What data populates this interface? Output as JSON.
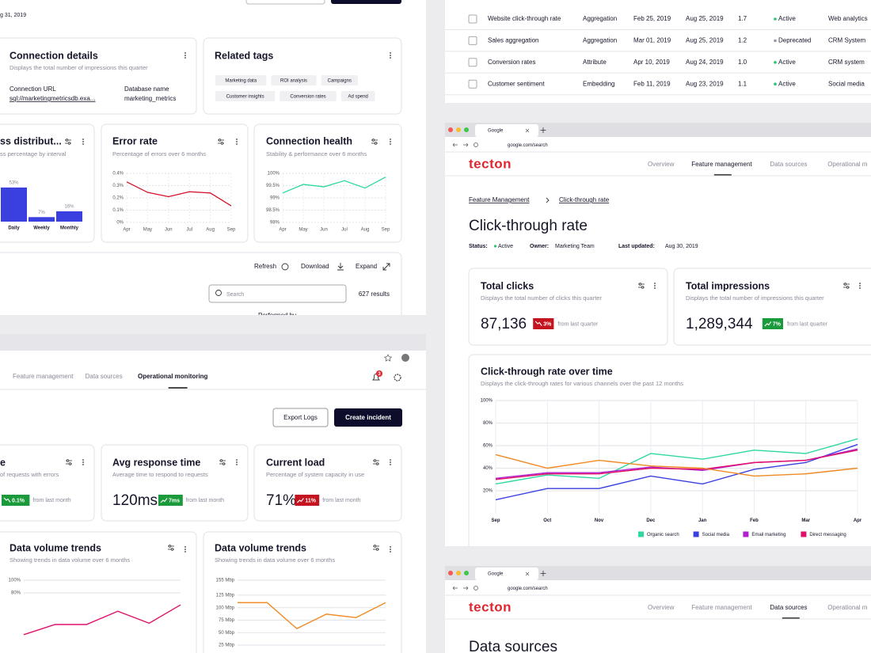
{
  "top_left": {
    "date_fragment": "g 31, 2019",
    "connection_details": {
      "title": "Connection details",
      "subtitle": "Displays the total number of impressions this quarter",
      "url_label": "Connection URL",
      "url": "sql://marketingmetricsdb.exa...",
      "db_label": "Database name",
      "db": "marketing_metrics"
    },
    "related_tags": {
      "title": "Related tags",
      "tags": [
        "Marketing data",
        "ROI analysis",
        "Campaigns",
        "Customer insights",
        "Conversion rates",
        "Ad spend"
      ]
    },
    "success_distribution": {
      "title": "ss distribut...",
      "subtitle": "ss percentage by interval",
      "chart": {
        "type": "bar",
        "categories": [
          "Daily",
          "Weekly",
          "Monthly"
        ],
        "values": [
          53,
          7,
          16
        ],
        "value_labels": [
          "53%",
          "7%",
          "16%"
        ],
        "ylim": [
          0,
          75
        ],
        "color": "#3a3fe0"
      }
    },
    "error_rate": {
      "title": "Error rate",
      "subtitle": "Percentage of errors over 6 months",
      "chart": {
        "type": "line",
        "categories": [
          "Apr",
          "May",
          "Jun",
          "Jul",
          "Aug",
          "Sep"
        ],
        "series": [
          {
            "color": "#d6102a",
            "values": [
              0.33,
              0.245,
              0.21,
              0.25,
              0.24,
              0.135
            ]
          }
        ],
        "ylim": [
          0,
          0.4
        ],
        "yticks": [
          {
            "value": 0,
            "label": "0%"
          },
          {
            "value": 0.1,
            "label": "0.1%"
          },
          {
            "value": 0.2,
            "label": "0.2%"
          },
          {
            "value": 0.3,
            "label": "0.3%"
          },
          {
            "value": 0.4,
            "label": "0.4%"
          }
        ],
        "grid": true
      }
    },
    "connection_health": {
      "title": "Connection health",
      "subtitle": "Stability & performance over 6 months",
      "chart": {
        "type": "line",
        "categories": [
          "Apr",
          "May",
          "Jun",
          "Jul",
          "Aug",
          "Sep"
        ],
        "series": [
          {
            "color": "#2ed8a0",
            "values": [
              99.2,
              99.55,
              99.45,
              99.7,
              99.4,
              99.85
            ]
          }
        ],
        "ylim": [
          98,
          100
        ],
        "yticks": [
          {
            "value": 98,
            "label": "98%"
          },
          {
            "value": 98.5,
            "label": "98.5%"
          },
          {
            "value": 99,
            "label": "99%"
          },
          {
            "value": 99.5,
            "label": "99.5%"
          },
          {
            "value": 100,
            "label": "100%"
          }
        ],
        "grid": true
      }
    },
    "table_toolbar": {
      "refresh": "Refresh",
      "download": "Download",
      "expand": "Expand",
      "search_placeholder": "Search",
      "results": "627 results",
      "column": "Performed by"
    }
  },
  "bottom_left": {
    "nav": [
      "Feature management",
      "Data sources",
      "Operational monitoring"
    ],
    "active_nav": 2,
    "notification_count": "3",
    "export_button": "Export Logs",
    "create_button": "Create incident",
    "metrics": [
      {
        "title": "e",
        "subtitle": "of requests with errors",
        "change": "0.1%",
        "direction": "down",
        "badge_color": "#1a9a3a",
        "from": "from last month"
      },
      {
        "title": "Avg response time",
        "subtitle": "Average time to respond to requests",
        "value": "120ms",
        "change": "7ms",
        "direction": "up",
        "badge_color": "#1a9a3a",
        "from": "from last month"
      },
      {
        "title": "Current load",
        "subtitle": "Percentage of system capacity in use",
        "value": "71%",
        "change": "11%",
        "direction": "up",
        "badge_color": "#c4141f",
        "from": "from last month"
      }
    ],
    "volume_charts": [
      {
        "title": "Data volume trends",
        "subtitle": "Showing trends in data volume over 6 months",
        "chart": {
          "type": "line",
          "series": [
            {
              "color": "#e0106a",
              "values": [
                14,
                30,
                30,
                51,
                32,
                61
              ]
            }
          ],
          "ylim": [
            0,
            100
          ],
          "yticks": [
            {
              "value": 100,
              "label": "100%"
            },
            {
              "value": 80,
              "label": "80%"
            }
          ],
          "grid": true
        }
      },
      {
        "title": "Data volume trends",
        "subtitle": "Showing trends in data volume over 6 months",
        "chart": {
          "type": "line",
          "series": [
            {
              "color": "#f08a24",
              "values": [
                110,
                110,
                58,
                87,
                80,
                110
              ]
            }
          ],
          "ylim": [
            25,
            155
          ],
          "yticks": [
            {
              "value": 155,
              "label": "155 Mbp"
            },
            {
              "value": 125,
              "label": "125 Mbp"
            },
            {
              "value": 100,
              "label": "100 Mbp"
            },
            {
              "value": 75,
              "label": "75 Mbp"
            },
            {
              "value": 50,
              "label": "50 Mbp"
            },
            {
              "value": 25,
              "label": "25 Mbp"
            }
          ],
          "grid": true
        }
      }
    ]
  },
  "feature_table": {
    "status_colors": {
      "Active": "#2cc56f",
      "Deprecated": "#9a9aa5"
    },
    "rows": [
      [
        "Website click-through rate",
        "Aggregation",
        "Feb 25, 2019",
        "Aug 25, 2019",
        "1.7",
        "Active",
        "Web analytics"
      ],
      [
        "Sales aggregation",
        "Aggregation",
        "Mar 01, 2019",
        "Aug 25, 2019",
        "1.2",
        "Deprecated",
        "CRM System"
      ],
      [
        "Conversion rates",
        "Attribute",
        "Apr 10, 2019",
        "Aug 24, 2019",
        "1.0",
        "Active",
        "CRM system"
      ],
      [
        "Customer sentiment",
        "Embedding",
        "Feb 11, 2019",
        "Aug 23, 2019",
        "1.1",
        "Active",
        "Social media"
      ]
    ]
  },
  "feature_page": {
    "tab": "Google",
    "url": "google.com/search",
    "logo": "tecton",
    "nav": [
      "Overview",
      "Feature management",
      "Data sources",
      "Operational m"
    ],
    "active_nav": 1,
    "breadcrumb": [
      "Feature Management",
      "Click-through rate"
    ],
    "title": "Click-through rate",
    "status_label": "Status:",
    "status": "Active",
    "owner_label": "Owner:",
    "owner": "Marketing Team",
    "updated_label": "Last updated:",
    "updated": "Aug 30, 2019",
    "kpis": [
      {
        "title": "Total clicks",
        "subtitle": "Displays the total number of clicks this quarter",
        "value": "87,136",
        "change": "3%",
        "direction": "down",
        "badge_color": "#c4141f",
        "from": "from last quarter"
      },
      {
        "title": "Total impressions",
        "subtitle": "Displays the total number of impressions this quarter",
        "value": "1,289,344",
        "change": "7%",
        "direction": "up",
        "badge_color": "#1a9a3a",
        "from": "from last quarter"
      }
    ],
    "chart": {
      "type": "line",
      "title": "Click-through rate over time",
      "subtitle": "Displays the click-through rates for various channels over the past 12 months",
      "categories": [
        "Sep",
        "Oct",
        "Nov",
        "Dec",
        "Jan",
        "Feb",
        "Mar",
        "Apr"
      ],
      "series": [
        {
          "name": "Organic search",
          "color": "#2ed8a0",
          "values": [
            26,
            34,
            31,
            53,
            48,
            56,
            53,
            66
          ]
        },
        {
          "name": "Social media",
          "color": "#3a3fe0",
          "values": [
            12,
            22,
            22,
            33,
            26,
            39,
            45,
            61
          ]
        },
        {
          "name": "Email marketing",
          "color": "#b020d0",
          "values": [
            31,
            36,
            36,
            41,
            38,
            45,
            47,
            57
          ]
        },
        {
          "name": "Direct messaging",
          "color": "#e0106a",
          "values": [
            30,
            35,
            35,
            40,
            39,
            45,
            47,
            56
          ]
        },
        {
          "color": "#f08a24",
          "values": [
            52,
            40,
            47,
            42,
            40,
            33,
            35,
            40
          ]
        }
      ],
      "ylim": [
        0,
        100
      ],
      "yticks": [
        {
          "value": 20,
          "label": "20%"
        },
        {
          "value": 40,
          "label": "40%"
        },
        {
          "value": 60,
          "label": "60%"
        },
        {
          "value": 80,
          "label": "80%"
        },
        {
          "value": 100,
          "label": "100%"
        }
      ],
      "grid": true,
      "legend": "bottom"
    }
  },
  "data_sources_page": {
    "tab": "Google",
    "url": "google.com/search",
    "logo": "tecton",
    "nav": [
      "Overview",
      "Feature management",
      "Data sources",
      "Operational m"
    ],
    "active_nav": 2,
    "title": "Data sources"
  }
}
